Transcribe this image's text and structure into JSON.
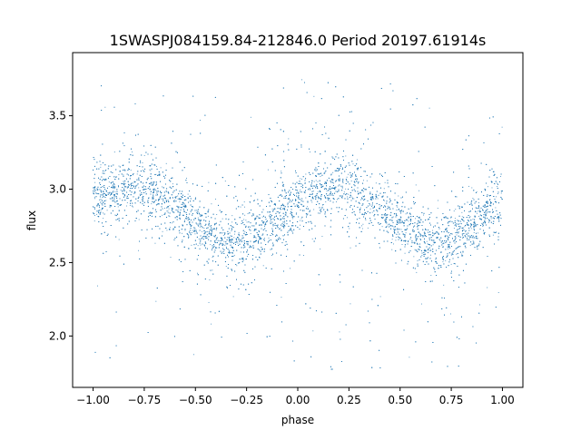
{
  "chart_data": {
    "type": "scatter",
    "title": "1SWASPJ084159.84-212846.0 Period 20197.61914s",
    "xlabel": "phase",
    "ylabel": "flux",
    "xlim": [
      -1.1,
      1.1
    ],
    "ylim": [
      1.65,
      3.93
    ],
    "x_ticks": [
      -1.0,
      -0.75,
      -0.5,
      -0.25,
      0.0,
      0.25,
      0.5,
      0.75,
      1.0
    ],
    "x_tick_labels": [
      "−1.00",
      "−0.75",
      "−0.50",
      "−0.25",
      "0.00",
      "0.25",
      "0.50",
      "0.75",
      "1.00"
    ],
    "y_ticks": [
      2.0,
      2.5,
      3.0,
      3.5
    ],
    "y_tick_labels": [
      "2.0",
      "2.5",
      "3.0",
      "3.5"
    ],
    "grid": false,
    "legend": "none",
    "marker_color": "#1f77b4",
    "x_range": [
      -1.0,
      1.0
    ],
    "series": [
      {
        "curve": {
          "x": [
            -1.0,
            -0.9,
            -0.8,
            -0.7,
            -0.6,
            -0.5,
            -0.4,
            -0.3,
            -0.2,
            -0.1,
            0.0,
            0.1,
            0.2,
            0.3,
            0.4,
            0.5,
            0.6,
            0.7,
            0.8,
            0.9,
            1.0
          ],
          "y": [
            2.92,
            2.99,
            3.04,
            2.97,
            2.88,
            2.76,
            2.66,
            2.62,
            2.7,
            2.81,
            2.92,
            2.99,
            3.04,
            2.97,
            2.88,
            2.76,
            2.66,
            2.62,
            2.7,
            2.81,
            2.92
          ]
        },
        "core_scatter_sd": 0.1,
        "outlier_range": [
          1.75,
          3.75
        ]
      }
    ]
  }
}
